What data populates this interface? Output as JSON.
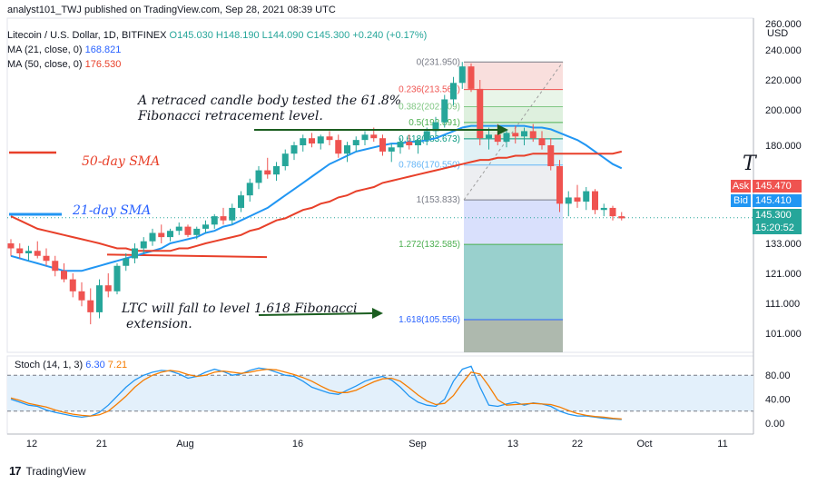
{
  "header": {
    "published": "analyst101_TWJ published on TradingView.com, Sep 28, 2021 08:39 UTC"
  },
  "legend": {
    "symbol": "Litecoin / U.S. Dollar, 1D, BITFINEX",
    "ohlc": "O145.030 H148.190 L144.090 C145.300 +0.240 (+0.17%)",
    "ma21_label": "MA (21, close, 0)",
    "ma21_value": "168.821",
    "ma50_label": "MA (50, close, 0)",
    "ma50_value": "176.530",
    "stoch_label": "Stoch (14, 1, 3)",
    "stoch_k": "6.30",
    "stoch_d": "7.21"
  },
  "price_tags": {
    "ask_label": "Ask",
    "ask_value": "145.470",
    "bid_label": "Bid",
    "bid_value": "145.410",
    "last_value": "145.300",
    "countdown": "15:20:52",
    "currency": "USD",
    "t_marker": "T"
  },
  "annotations": {
    "retrace_line1": "A retraced candle body tested the 61.8%",
    "retrace_line2": "Fibonacci retracement level.",
    "fall_line1": "LTC will fall to level 1.618 Fibonacci",
    "fall_line2": "extension.",
    "sma50": "50-day SMA",
    "sma21": "21-day SMA"
  },
  "footer": {
    "brand": "TradingView",
    "logo_mark": "17"
  },
  "colors": {
    "up": "#26a69a",
    "down": "#ef5350",
    "ma21": "#2196f3",
    "ma50": "#e8402a",
    "stoch_k": "#2196f3",
    "stoch_d": "#f57c00",
    "arrow": "#1b5e20"
  },
  "chart_data": [
    {
      "type": "candlestick",
      "title": "Litecoin / U.S. Dollar, 1D, BITFINEX",
      "y_axis_ticks": [
        "260.000",
        "240.000",
        "220.000",
        "200.000",
        "180.000",
        "133.000",
        "121.000",
        "111.000",
        "101.000"
      ],
      "x_axis_ticks": [
        "12",
        "21",
        "Aug",
        "16",
        "Sep",
        "13",
        "22",
        "Oct",
        "11"
      ],
      "ohlc": [
        [
          133,
          135,
          128,
          131
        ],
        [
          131,
          133,
          127,
          129
        ],
        [
          129,
          132,
          126,
          130
        ],
        [
          130,
          134,
          127,
          128
        ],
        [
          128,
          131,
          124,
          126
        ],
        [
          126,
          128,
          120,
          122
        ],
        [
          122,
          125,
          118,
          119
        ],
        [
          119,
          121,
          113,
          115
        ],
        [
          115,
          118,
          110,
          112
        ],
        [
          112,
          116,
          104,
          108
        ],
        [
          108,
          119,
          106,
          117
        ],
        [
          117,
          121,
          113,
          115
        ],
        [
          115,
          125,
          114,
          124
        ],
        [
          124,
          129,
          122,
          127
        ],
        [
          127,
          133,
          125,
          131
        ],
        [
          131,
          136,
          129,
          134
        ],
        [
          134,
          140,
          132,
          138
        ],
        [
          138,
          142,
          133,
          136
        ],
        [
          136,
          140,
          134,
          139
        ],
        [
          139,
          143,
          137,
          141
        ],
        [
          141,
          142,
          136,
          137
        ],
        [
          137,
          141,
          135,
          140
        ],
        [
          140,
          144,
          138,
          142
        ],
        [
          142,
          147,
          140,
          146
        ],
        [
          146,
          150,
          142,
          144
        ],
        [
          144,
          152,
          142,
          150
        ],
        [
          150,
          158,
          148,
          156
        ],
        [
          156,
          164,
          153,
          162
        ],
        [
          162,
          170,
          159,
          168
        ],
        [
          168,
          174,
          164,
          166
        ],
        [
          166,
          172,
          163,
          170
        ],
        [
          170,
          178,
          168,
          176
        ],
        [
          176,
          182,
          173,
          180
        ],
        [
          180,
          186,
          177,
          184
        ],
        [
          184,
          187,
          179,
          181
        ],
        [
          181,
          186,
          178,
          185
        ],
        [
          185,
          188,
          180,
          183
        ],
        [
          183,
          186,
          174,
          176
        ],
        [
          176,
          182,
          172,
          180
        ],
        [
          180,
          185,
          177,
          183
        ],
        [
          183,
          188,
          180,
          186
        ],
        [
          186,
          190,
          182,
          184
        ],
        [
          184,
          186,
          175,
          177
        ],
        [
          177,
          181,
          172,
          179
        ],
        [
          179,
          184,
          176,
          182
        ],
        [
          182,
          186,
          178,
          180
        ],
        [
          180,
          184,
          176,
          183
        ],
        [
          183,
          190,
          180,
          188
        ],
        [
          188,
          196,
          185,
          193
        ],
        [
          193,
          210,
          190,
          207
        ],
        [
          207,
          222,
          203,
          218
        ],
        [
          218,
          232,
          214,
          229
        ],
        [
          229,
          231,
          212,
          214
        ],
        [
          214,
          220,
          180,
          184
        ],
        [
          184,
          190,
          178,
          186
        ],
        [
          186,
          192,
          180,
          182
        ],
        [
          182,
          189,
          179,
          187
        ],
        [
          187,
          191,
          181,
          185
        ],
        [
          185,
          190,
          180,
          188
        ],
        [
          188,
          192,
          182,
          184
        ],
        [
          184,
          188,
          178,
          180
        ],
        [
          180,
          184,
          168,
          170
        ],
        [
          170,
          173,
          148,
          152
        ],
        [
          152,
          158,
          146,
          155
        ],
        [
          155,
          161,
          150,
          153
        ],
        [
          153,
          160,
          149,
          158
        ],
        [
          158,
          159,
          147,
          149
        ],
        [
          149,
          152,
          146,
          150
        ],
        [
          150,
          151,
          144,
          146
        ],
        [
          146,
          148,
          144,
          145
        ]
      ],
      "series": [
        {
          "name": "MA (21, close, 0)",
          "values": [
            128,
            127,
            126,
            125,
            124,
            123,
            122,
            122,
            122,
            123,
            124,
            125,
            126,
            127,
            128,
            129,
            130,
            131,
            133,
            134,
            135,
            136,
            138,
            139,
            141,
            142,
            144,
            146,
            148,
            150,
            153,
            156,
            159,
            162,
            165,
            168,
            171,
            173,
            175,
            177,
            178,
            179,
            180,
            181,
            181,
            182,
            182,
            183,
            184,
            186,
            188,
            190,
            191,
            191,
            191,
            191,
            191,
            191,
            191,
            190,
            190,
            189,
            187,
            185,
            183,
            180,
            177,
            174,
            171,
            169
          ]
        },
        {
          "name": "MA (50, close, 0)",
          "values": [
            146,
            144,
            142,
            140,
            139,
            138,
            137,
            136,
            135,
            134,
            133,
            132,
            131,
            131,
            130,
            130,
            130,
            130,
            130,
            131,
            131,
            132,
            133,
            134,
            135,
            136,
            137,
            139,
            140,
            142,
            144,
            145,
            147,
            149,
            150,
            152,
            153,
            155,
            156,
            158,
            159,
            160,
            162,
            163,
            164,
            165,
            166,
            167,
            168,
            169,
            170,
            171,
            172,
            173,
            173,
            174,
            174,
            175,
            175,
            176,
            176,
            176,
            176,
            176,
            176,
            176,
            176,
            176,
            176,
            177
          ]
        }
      ],
      "fibonacci": [
        {
          "level": "0",
          "price": "231.950"
        },
        {
          "level": "0.236",
          "price": "213.564"
        },
        {
          "level": "0.382",
          "price": "202.109"
        },
        {
          "level": "0.5",
          "price": "192.891"
        },
        {
          "level": "0.618",
          "price": "183.673"
        },
        {
          "level": "0.786",
          "price": "170.550"
        },
        {
          "level": "1",
          "price": "153.833"
        },
        {
          "level": "1.272",
          "price": "132.585"
        },
        {
          "level": "1.618",
          "price": "105.556"
        }
      ]
    },
    {
      "type": "line",
      "title": "Stoch (14, 1, 3)",
      "y_axis_ticks": [
        "80.00",
        "40.00",
        "0.00"
      ],
      "ylim": [
        0,
        100
      ],
      "series": [
        {
          "name": "%K",
          "values": [
            40,
            35,
            30,
            28,
            22,
            18,
            15,
            12,
            10,
            12,
            18,
            30,
            45,
            60,
            72,
            80,
            85,
            88,
            87,
            82,
            75,
            78,
            85,
            90,
            86,
            80,
            82,
            88,
            92,
            90,
            85,
            80,
            78,
            70,
            60,
            55,
            50,
            48,
            55,
            62,
            70,
            75,
            78,
            72,
            60,
            45,
            35,
            30,
            28,
            40,
            70,
            90,
            95,
            60,
            30,
            28,
            32,
            35,
            30,
            34,
            32,
            28,
            20,
            15,
            12,
            12,
            10,
            8,
            7,
            6
          ]
        },
        {
          "name": "%D",
          "values": [
            42,
            38,
            33,
            30,
            27,
            22,
            18,
            15,
            13,
            12,
            14,
            20,
            32,
            45,
            60,
            72,
            80,
            85,
            88,
            86,
            81,
            78,
            80,
            85,
            87,
            85,
            83,
            85,
            88,
            90,
            89,
            85,
            81,
            76,
            70,
            62,
            55,
            51,
            51,
            55,
            62,
            69,
            74,
            75,
            70,
            59,
            47,
            37,
            31,
            33,
            46,
            67,
            85,
            82,
            62,
            39,
            30,
            31,
            32,
            33,
            32,
            31,
            27,
            21,
            16,
            13,
            11,
            10,
            8,
            7
          ]
        }
      ]
    }
  ]
}
